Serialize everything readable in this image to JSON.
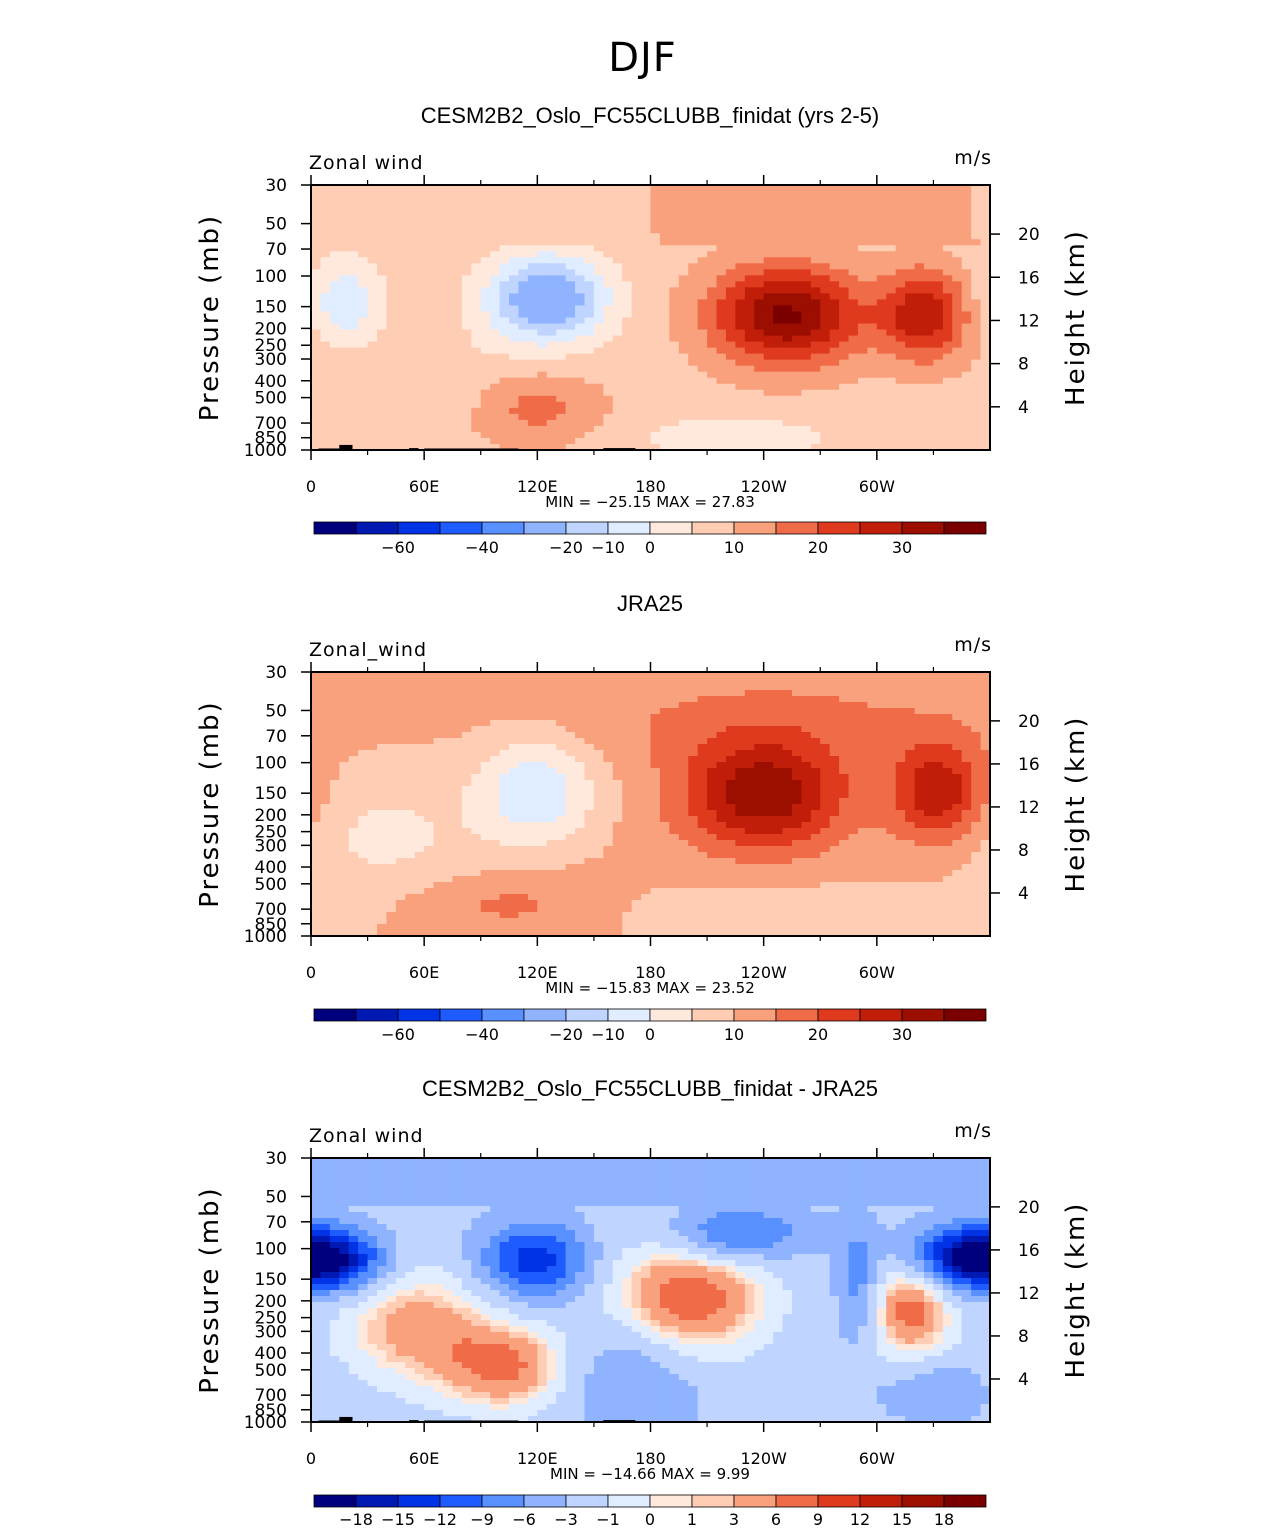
{
  "page": {
    "season": "DJF"
  },
  "colors": {
    "palette": [
      "#00007f",
      "#0019b2",
      "#0033e5",
      "#1f5cff",
      "#5990ff",
      "#8fb3ff",
      "#bfd4ff",
      "#e0ecff",
      "#ffe9dc",
      "#ffccb4",
      "#f9a07c",
      "#f06c48",
      "#e03a1e",
      "#c01e08",
      "#9c0e00",
      "#7a0000"
    ],
    "axis": "#000000"
  },
  "chart_data": [
    {
      "type": "heatmap",
      "title": "CESM2B2_Oslo_FC55CLUBB_finidat (yrs 2-5)",
      "variable_label": "Zonal wind",
      "units_label": "m/s",
      "ylabel": "Pressure (mb)",
      "ylabel_right": "Height (km)",
      "x_ticks": [
        "0",
        "60E",
        "120E",
        "180",
        "120W",
        "60W"
      ],
      "x_range_deg_east": [
        0,
        360
      ],
      "y_ticks": [
        "30",
        "50",
        "70",
        "100",
        "150",
        "200",
        "250",
        "300",
        "400",
        "500",
        "700",
        "850",
        "1000"
      ],
      "y_ticks_right": [
        "20",
        "16",
        "12",
        "8",
        "4"
      ],
      "ylim_mb": [
        1000,
        30
      ],
      "stats_text": "MIN =  −25.15   MAX =   27.83",
      "min": -25.15,
      "max": 27.83,
      "contour_levels": [
        -70,
        -60,
        -50,
        -40,
        -30,
        -20,
        -15,
        -10,
        -5,
        0,
        5,
        10,
        15,
        20,
        25,
        30,
        35
      ],
      "colorbar_labels": [
        "−60",
        "−40",
        "−20",
        "−10",
        "0",
        "10",
        "20",
        "30"
      ],
      "features": [
        {
          "kind": "westerly_jet_max",
          "lon": 250,
          "p_mb": 180,
          "value": 27.8
        },
        {
          "kind": "westerly_jet_max",
          "lon": 325,
          "p_mb": 180,
          "value": 20
        },
        {
          "kind": "easterly_max",
          "lon": 120,
          "p_mb": 140,
          "value": -25.1
        },
        {
          "kind": "easterly_max",
          "lon": 17,
          "p_mb": 150,
          "value": -13
        }
      ]
    },
    {
      "type": "heatmap",
      "title": "JRA25",
      "variable_label": "Zonal_wind",
      "units_label": "m/s",
      "ylabel": "Pressure (mb)",
      "ylabel_right": "Height (km)",
      "x_ticks": [
        "0",
        "60E",
        "120E",
        "180",
        "120W",
        "60W"
      ],
      "x_range_deg_east": [
        0,
        360
      ],
      "y_ticks": [
        "30",
        "50",
        "70",
        "100",
        "150",
        "200",
        "250",
        "300",
        "400",
        "500",
        "700",
        "850",
        "1000"
      ],
      "y_ticks_right": [
        "20",
        "16",
        "12",
        "8",
        "4"
      ],
      "ylim_mb": [
        1000,
        30
      ],
      "stats_text": "MIN =  −15.83   MAX =   23.52",
      "min": -15.83,
      "max": 23.52,
      "contour_levels": [
        -70,
        -60,
        -50,
        -40,
        -30,
        -20,
        -15,
        -10,
        -5,
        0,
        5,
        10,
        15,
        20,
        25,
        30,
        35
      ],
      "colorbar_labels": [
        "−60",
        "−40",
        "−20",
        "−10",
        "0",
        "10",
        "20",
        "30"
      ],
      "features": [
        {
          "kind": "westerly_jet_max",
          "lon": 240,
          "p_mb": 160,
          "value": 23.5
        },
        {
          "kind": "westerly_jet_max",
          "lon": 332,
          "p_mb": 150,
          "value": 19
        },
        {
          "kind": "easterly_max",
          "lon": 120,
          "p_mb": 150,
          "value": -15.8
        }
      ]
    },
    {
      "type": "heatmap",
      "title": "CESM2B2_Oslo_FC55CLUBB_finidat - JRA25",
      "variable_label": "Zonal wind",
      "units_label": "m/s",
      "ylabel": "Pressure (mb)",
      "ylabel_right": "Height (km)",
      "x_ticks": [
        "0",
        "60E",
        "120E",
        "180",
        "120W",
        "60W"
      ],
      "x_range_deg_east": [
        0,
        360
      ],
      "y_ticks": [
        "30",
        "50",
        "70",
        "100",
        "150",
        "200",
        "250",
        "300",
        "400",
        "500",
        "700",
        "850",
        "1000"
      ],
      "y_ticks_right": [
        "20",
        "16",
        "12",
        "8",
        "4"
      ],
      "ylim_mb": [
        1000,
        30
      ],
      "stats_text": "MIN =  −14.66   MAX =     9.99",
      "min": -14.66,
      "max": 9.99,
      "contour_levels": [
        -21,
        -18,
        -15,
        -12,
        -9,
        -6,
        -3,
        -1,
        0,
        1,
        3,
        6,
        9,
        12,
        15,
        18,
        21
      ],
      "colorbar_labels": [
        "−18",
        "−15",
        "−12",
        "−9",
        "−6",
        "−3",
        "−1",
        "0",
        "1",
        "3",
        "6",
        "9",
        "12",
        "15",
        "18"
      ],
      "features": [
        {
          "kind": "positive_max",
          "lon": 200,
          "p_mb": 180,
          "value": 10
        },
        {
          "kind": "positive_max",
          "lon": 315,
          "p_mb": 200,
          "value": 9
        },
        {
          "kind": "negative_max",
          "lon": 10,
          "p_mb": 140,
          "value": -14.7
        },
        {
          "kind": "negative_max",
          "lon": 345,
          "p_mb": 110,
          "value": -13
        },
        {
          "kind": "negative_max",
          "lon": 115,
          "p_mb": 130,
          "value": -12
        }
      ]
    }
  ]
}
